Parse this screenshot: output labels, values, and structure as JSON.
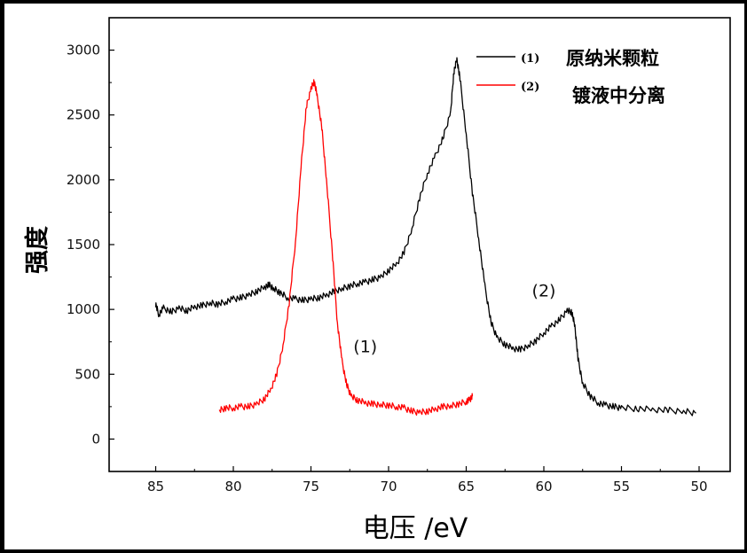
{
  "chart_data": {
    "type": "line",
    "xlabel": "电压  /eV",
    "ylabel": "强度",
    "xlim": [
      88,
      48
    ],
    "ylim": [
      -250,
      3250
    ],
    "x_ticks": [
      85,
      80,
      75,
      70,
      65,
      60,
      55,
      50
    ],
    "y_ticks": [
      0,
      500,
      1000,
      1500,
      2000,
      2500,
      3000
    ],
    "grid": false,
    "legend_position": "top-right",
    "legend": {
      "entries": [
        {
          "marker": "(1)",
          "color": "#000000",
          "text": "原纳米颗粒"
        },
        {
          "marker": "(2)",
          "color": "#ff0000",
          "text": "镀液中分离"
        }
      ]
    },
    "annotations": [
      {
        "text": "(1)",
        "x": 71.5,
        "y": 670
      },
      {
        "text": "(2)",
        "x": 60,
        "y": 1100
      }
    ],
    "series": [
      {
        "color": "#000000",
        "points": [
          [
            85.0,
            1040
          ],
          [
            84.8,
            960
          ],
          [
            84.5,
            1010
          ],
          [
            84.0,
            980
          ],
          [
            83.5,
            1010
          ],
          [
            83.0,
            990
          ],
          [
            82.5,
            1020
          ],
          [
            82.0,
            1030
          ],
          [
            81.5,
            1050
          ],
          [
            81.0,
            1040
          ],
          [
            80.5,
            1060
          ],
          [
            80.0,
            1080
          ],
          [
            79.5,
            1090
          ],
          [
            79.0,
            1110
          ],
          [
            78.5,
            1140
          ],
          [
            78.0,
            1170
          ],
          [
            77.7,
            1190
          ],
          [
            77.4,
            1160
          ],
          [
            77.0,
            1130
          ],
          [
            76.5,
            1090
          ],
          [
            76.0,
            1080
          ],
          [
            75.5,
            1070
          ],
          [
            75.0,
            1080
          ],
          [
            74.5,
            1090
          ],
          [
            74.0,
            1110
          ],
          [
            73.5,
            1140
          ],
          [
            73.0,
            1160
          ],
          [
            72.5,
            1180
          ],
          [
            72.0,
            1200
          ],
          [
            71.5,
            1210
          ],
          [
            71.0,
            1230
          ],
          [
            70.5,
            1250
          ],
          [
            70.0,
            1300
          ],
          [
            69.5,
            1350
          ],
          [
            69.0,
            1440
          ],
          [
            68.5,
            1620
          ],
          [
            68.0,
            1860
          ],
          [
            67.5,
            2050
          ],
          [
            67.0,
            2180
          ],
          [
            66.5,
            2320
          ],
          [
            66.0,
            2520
          ],
          [
            65.8,
            2830
          ],
          [
            65.6,
            2930
          ],
          [
            65.4,
            2780
          ],
          [
            65.0,
            2350
          ],
          [
            64.6,
            1900
          ],
          [
            64.2,
            1550
          ],
          [
            63.8,
            1180
          ],
          [
            63.4,
            900
          ],
          [
            63.0,
            780
          ],
          [
            62.5,
            730
          ],
          [
            62.0,
            700
          ],
          [
            61.5,
            690
          ],
          [
            61.0,
            720
          ],
          [
            60.5,
            760
          ],
          [
            60.0,
            820
          ],
          [
            59.5,
            870
          ],
          [
            59.0,
            920
          ],
          [
            58.5,
            990
          ],
          [
            58.2,
            980
          ],
          [
            58.0,
            870
          ],
          [
            57.8,
            620
          ],
          [
            57.5,
            430
          ],
          [
            57.0,
            330
          ],
          [
            56.5,
            280
          ],
          [
            56.0,
            260
          ],
          [
            55.5,
            250
          ],
          [
            55.0,
            240
          ],
          [
            54.0,
            235
          ],
          [
            53.0,
            228
          ],
          [
            52.0,
            222
          ],
          [
            51.0,
            215
          ],
          [
            50.2,
            200
          ]
        ]
      },
      {
        "color": "#ff0000",
        "points": [
          [
            80.9,
            220
          ],
          [
            80.5,
            240
          ],
          [
            80.0,
            240
          ],
          [
            79.5,
            250
          ],
          [
            79.0,
            250
          ],
          [
            78.5,
            270
          ],
          [
            78.0,
            310
          ],
          [
            77.6,
            380
          ],
          [
            77.2,
            500
          ],
          [
            76.8,
            720
          ],
          [
            76.4,
            1050
          ],
          [
            76.0,
            1520
          ],
          [
            75.6,
            2150
          ],
          [
            75.3,
            2560
          ],
          [
            75.0,
            2700
          ],
          [
            74.8,
            2760
          ],
          [
            74.6,
            2650
          ],
          [
            74.3,
            2400
          ],
          [
            74.0,
            2000
          ],
          [
            73.6,
            1400
          ],
          [
            73.3,
            900
          ],
          [
            73.0,
            600
          ],
          [
            72.7,
            420
          ],
          [
            72.4,
            330
          ],
          [
            72.0,
            300
          ],
          [
            71.5,
            280
          ],
          [
            71.0,
            270
          ],
          [
            70.5,
            265
          ],
          [
            70.0,
            260
          ],
          [
            69.5,
            250
          ],
          [
            69.0,
            240
          ],
          [
            68.5,
            215
          ],
          [
            68.0,
            205
          ],
          [
            67.5,
            215
          ],
          [
            67.0,
            230
          ],
          [
            66.5,
            250
          ],
          [
            66.0,
            255
          ],
          [
            65.5,
            270
          ],
          [
            65.0,
            290
          ],
          [
            64.8,
            300
          ],
          [
            64.6,
            330
          ]
        ]
      }
    ]
  }
}
